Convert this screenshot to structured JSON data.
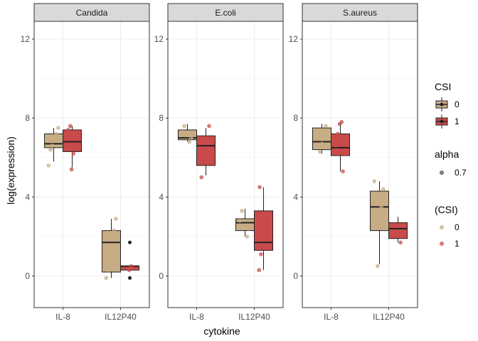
{
  "chart_data": {
    "type": "boxplot",
    "xlabel": "cytokine",
    "ylabel": "log(expression)",
    "ylim": [
      -1.6,
      12.9
    ],
    "yticks": [
      0,
      4,
      8,
      12
    ],
    "categories": [
      "IL-8",
      "IL12P40"
    ],
    "grid": true,
    "legend_position": "right",
    "colors": {
      "csi_0": "#c8ac84",
      "csi_1": "#c94a4a",
      "outline": "#222222",
      "strip_bg": "#d9d9d9",
      "grid": "#ebebeb",
      "panel_border": "#333333"
    },
    "legends": [
      {
        "title": "CSI",
        "entries": [
          {
            "label": "0",
            "key": "csi_0"
          },
          {
            "label": "1",
            "key": "csi_1"
          }
        ]
      },
      {
        "title": "alpha",
        "entries": [
          {
            "label": "0.7",
            "key": "alpha"
          }
        ]
      },
      {
        "title": "(CSI)",
        "entries": [
          {
            "label": "0",
            "key": "csi_0"
          },
          {
            "label": "1",
            "key": "csi_1"
          }
        ]
      }
    ],
    "panels": [
      {
        "name": "Candida",
        "boxes": [
          {
            "category": "IL-8",
            "csi": 0,
            "min": 5.8,
            "q1": 6.5,
            "median": 6.7,
            "q3": 7.2,
            "max": 7.5,
            "outliers": []
          },
          {
            "category": "IL-8",
            "csi": 1,
            "min": 5.5,
            "q1": 6.3,
            "median": 6.8,
            "q3": 7.4,
            "max": 7.6,
            "outliers": []
          },
          {
            "category": "IL12P40",
            "csi": 0,
            "min": -0.1,
            "q1": 0.2,
            "median": 1.7,
            "q3": 2.3,
            "max": 2.9,
            "outliers": []
          },
          {
            "category": "IL12P40",
            "csi": 1,
            "min": 0.3,
            "q1": 0.3,
            "median": 0.5,
            "q3": 0.5,
            "max": 0.5,
            "outliers": [
              1.7,
              -0.1
            ]
          }
        ],
        "points": [
          {
            "category": "IL-8",
            "csi": 0,
            "values": [
              5.6,
              6.4,
              6.6,
              6.9,
              7.2,
              7.5
            ]
          },
          {
            "category": "IL-8",
            "csi": 1,
            "values": [
              5.4,
              6.2,
              6.6,
              7.1,
              7.4,
              7.6
            ]
          },
          {
            "category": "IL12P40",
            "csi": 0,
            "values": [
              -0.1,
              0.3,
              0.9,
              1.4,
              2.3,
              2.9
            ]
          },
          {
            "category": "IL12P40",
            "csi": 1,
            "values": [
              0.3,
              0.5
            ]
          }
        ]
      },
      {
        "name": "E.coli",
        "boxes": [
          {
            "category": "IL-8",
            "csi": 0,
            "min": 6.8,
            "q1": 6.9,
            "median": 7.0,
            "q3": 7.4,
            "max": 7.7,
            "outliers": []
          },
          {
            "category": "IL-8",
            "csi": 1,
            "min": 5.1,
            "q1": 5.6,
            "median": 6.6,
            "q3": 7.1,
            "max": 7.5,
            "outliers": []
          },
          {
            "category": "IL12P40",
            "csi": 0,
            "min": 2.0,
            "q1": 2.3,
            "median": 2.7,
            "q3": 2.9,
            "max": 3.4,
            "outliers": []
          },
          {
            "category": "IL12P40",
            "csi": 1,
            "min": 0.3,
            "q1": 1.3,
            "median": 1.7,
            "q3": 3.3,
            "max": 4.5,
            "outliers": []
          }
        ],
        "points": [
          {
            "category": "IL-8",
            "csi": 0,
            "values": [
              6.8,
              7.0,
              7.3,
              7.6
            ]
          },
          {
            "category": "IL-8",
            "csi": 1,
            "values": [
              5.0,
              5.8,
              6.3,
              7.0,
              7.6
            ]
          },
          {
            "category": "IL12P40",
            "csi": 0,
            "values": [
              2.0,
              2.4,
              2.8,
              3.3
            ]
          },
          {
            "category": "IL12P40",
            "csi": 1,
            "values": [
              0.3,
              1.1,
              1.5,
              2.0,
              2.7,
              3.1,
              4.5
            ]
          }
        ]
      },
      {
        "name": "S.aureus",
        "boxes": [
          {
            "category": "IL-8",
            "csi": 0,
            "min": 6.2,
            "q1": 6.4,
            "median": 6.8,
            "q3": 7.5,
            "max": 7.7,
            "outliers": []
          },
          {
            "category": "IL-8",
            "csi": 1,
            "min": 5.3,
            "q1": 6.1,
            "median": 6.5,
            "q3": 7.2,
            "max": 7.8,
            "outliers": []
          },
          {
            "category": "IL12P40",
            "csi": 0,
            "min": 0.6,
            "q1": 2.3,
            "median": 3.5,
            "q3": 4.3,
            "max": 4.8,
            "outliers": []
          },
          {
            "category": "IL12P40",
            "csi": 1,
            "min": 1.7,
            "q1": 1.9,
            "median": 2.4,
            "q3": 2.7,
            "max": 3.0,
            "outliers": []
          }
        ],
        "points": [
          {
            "category": "IL-8",
            "csi": 0,
            "values": [
              6.3,
              6.7,
              7.1,
              7.6
            ]
          },
          {
            "category": "IL-8",
            "csi": 1,
            "values": [
              5.3,
              6.2,
              6.6,
              7.2,
              7.7,
              7.8
            ]
          },
          {
            "category": "IL12P40",
            "csi": 0,
            "values": [
              0.5,
              2.6,
              3.5,
              4.4,
              4.8
            ]
          },
          {
            "category": "IL12P40",
            "csi": 1,
            "values": [
              1.7,
              2.2,
              2.6
            ]
          }
        ]
      }
    ]
  }
}
